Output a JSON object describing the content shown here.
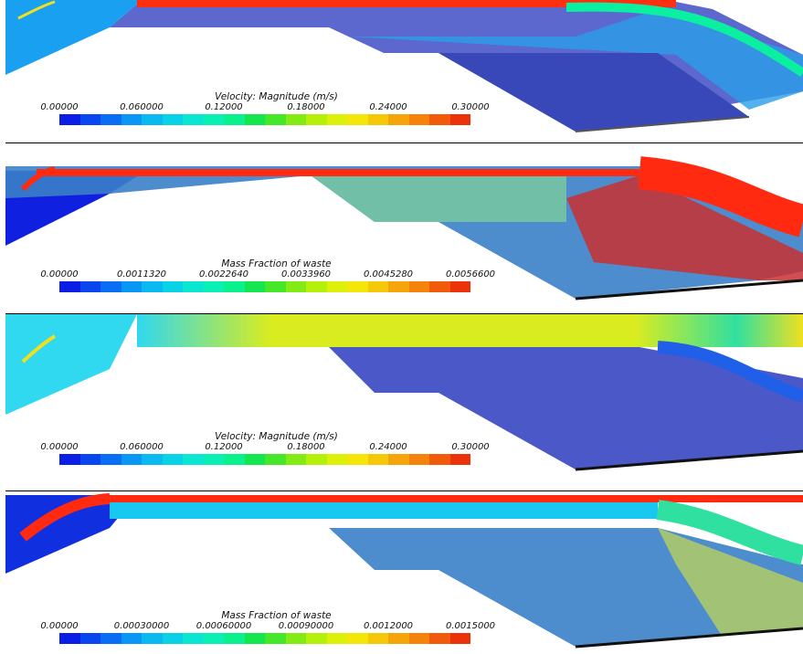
{
  "colorbar_colors": [
    "#0a1ee6",
    "#0a46f0",
    "#0a6ef5",
    "#0a96f5",
    "#0ab9f0",
    "#0ad2e6",
    "#0ae6d2",
    "#0af0b4",
    "#0af08c",
    "#14e650",
    "#46e628",
    "#82eb14",
    "#b4f00a",
    "#dcf00a",
    "#f5e60a",
    "#f5c80a",
    "#f5a50a",
    "#f5820a",
    "#f05a0a",
    "#eb320a"
  ],
  "panels": [
    {
      "id": "velocity-1",
      "legend_title": "Velocity: Magnitude (m/s)",
      "ticks": [
        "0.00000",
        "0.060000",
        "0.12000",
        "0.18000",
        "0.24000",
        "0.30000"
      ],
      "channel_color": "#0aa0f0",
      "channel_color_2": "#0af0a0",
      "top_band_color": "#ff2a10",
      "body_color": "#4a58c8"
    },
    {
      "id": "mass-fraction-1",
      "legend_title": "Mass Fraction of waste",
      "ticks": [
        "0.00000",
        "0.0011320",
        "0.0022640",
        "0.0033960",
        "0.0045280",
        "0.0056600"
      ],
      "channel_color": "#1020e0",
      "channel_color_2": "#ff2a10",
      "top_band_color": "#ff2a10",
      "body_color": "#3a7fc8"
    },
    {
      "id": "velocity-2",
      "legend_title": "Velocity: Magnitude (m/s)",
      "ticks": [
        "0.00000",
        "0.060000",
        "0.12000",
        "0.18000",
        "0.24000",
        "0.30000"
      ],
      "channel_color": "#30d8f0",
      "channel_color_2": "#e8e820",
      "top_band_color": "#d8ec20",
      "body_color": "#4a58c8"
    },
    {
      "id": "mass-fraction-2",
      "legend_title": "Mass Fraction of waste",
      "ticks": [
        "0.00000",
        "0.00030000",
        "0.00060000",
        "0.00090000",
        "0.0012000",
        "0.0015000"
      ],
      "channel_color": "#1030e0",
      "channel_color_2": "#10c0f0",
      "top_band_color": "#ff2a10",
      "body_color": "#3a7fc8"
    }
  ]
}
